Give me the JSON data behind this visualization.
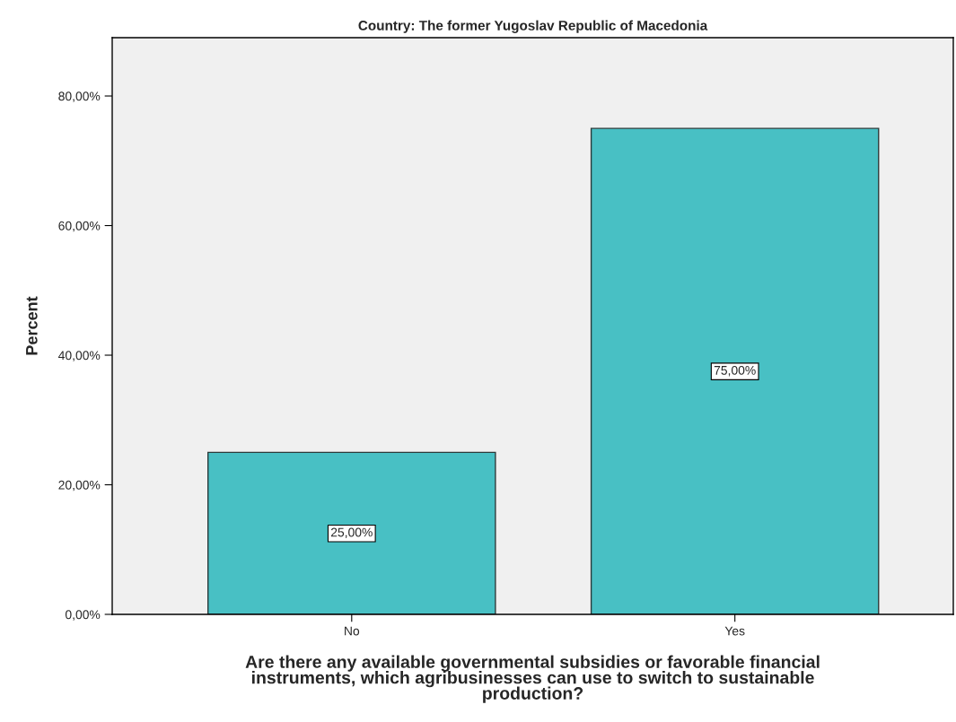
{
  "chart_data": {
    "type": "bar",
    "title": "Country: The former Yugoslav Republic of Macedonia",
    "xlabel": "Are there any available governmental subsidies or favorable financial\ninstruments, which agribusinesses can use to switch to sustainable\nproduction?",
    "ylabel": "Percent",
    "categories": [
      "No",
      "Yes"
    ],
    "values": [
      25,
      75
    ],
    "value_labels": [
      "25,00%",
      "75,00%"
    ],
    "color": "#48c0c4",
    "ylim": [
      0,
      89
    ],
    "yticks": [
      {
        "value": 0,
        "label": "0,00%"
      },
      {
        "value": 20,
        "label": "20,00%"
      },
      {
        "value": 40,
        "label": "40,00%"
      },
      {
        "value": 60,
        "label": "60,00%"
      },
      {
        "value": 80,
        "label": "80,00%"
      }
    ],
    "grid": false,
    "legend": false
  }
}
